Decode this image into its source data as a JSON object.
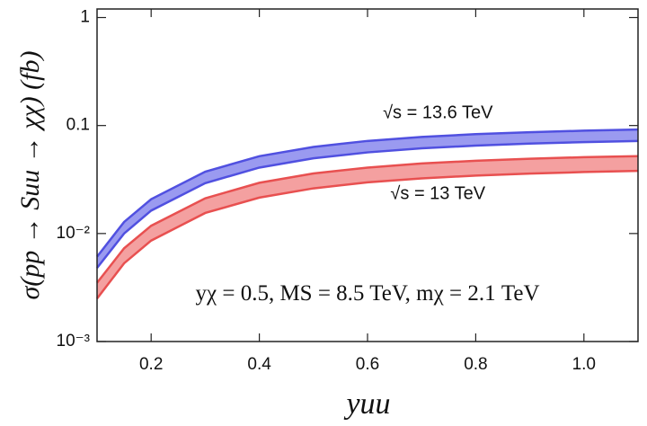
{
  "chart_data": {
    "type": "band",
    "xlabel": "yuu",
    "ylabel": "σ(pp → Suu → χχ)  (fb)",
    "x": [
      0.1,
      0.15,
      0.2,
      0.3,
      0.4,
      0.5,
      0.6,
      0.7,
      0.8,
      0.9,
      1.0,
      1.1
    ],
    "series": [
      {
        "color": "#5050e0",
        "fill": "#9a9af0",
        "upper": [
          0.0061,
          0.0128,
          0.0208,
          0.0374,
          0.052,
          0.0634,
          0.072,
          0.0784,
          0.0832,
          0.0868,
          0.0896,
          0.0918
        ],
        "lower": [
          0.0048,
          0.01,
          0.0163,
          0.0293,
          0.0408,
          0.0497,
          0.0564,
          0.0615,
          0.0652,
          0.0681,
          0.0703,
          0.072
        ]
      },
      {
        "color": "#e85050",
        "fill": "#f4a0a0",
        "upper": [
          0.0035,
          0.0073,
          0.0118,
          0.0212,
          0.0295,
          0.036,
          0.0408,
          0.0445,
          0.0472,
          0.0493,
          0.0509,
          0.0521
        ],
        "lower": [
          0.0025,
          0.0053,
          0.0086,
          0.0155,
          0.0215,
          0.0262,
          0.0298,
          0.0324,
          0.0344,
          0.0359,
          0.0371,
          0.038
        ]
      }
    ],
    "annotations": [
      {
        "text": "√s = 13.6 TeV",
        "x": 0.73,
        "y": 0.13
      },
      {
        "text": "√s = 13 TeV",
        "x": 0.73,
        "y": 0.023
      },
      {
        "text": "yχ = 0.5,  MS = 8.5 TeV,  mχ = 2.1 TeV",
        "x": 0.6,
        "y": 0.0027
      }
    ],
    "xlim": [
      0.1,
      1.1
    ],
    "xticks": [
      0.2,
      0.4,
      0.6,
      0.8,
      {
        "value": 1.0,
        "label": "1.0"
      }
    ],
    "ylim": [
      0.001,
      1.2
    ],
    "yticks": [
      1,
      0.1,
      {
        "value": 0.01,
        "label": "10⁻²"
      },
      {
        "value": 0.001,
        "label": "10⁻³"
      }
    ],
    "log_y": true
  }
}
